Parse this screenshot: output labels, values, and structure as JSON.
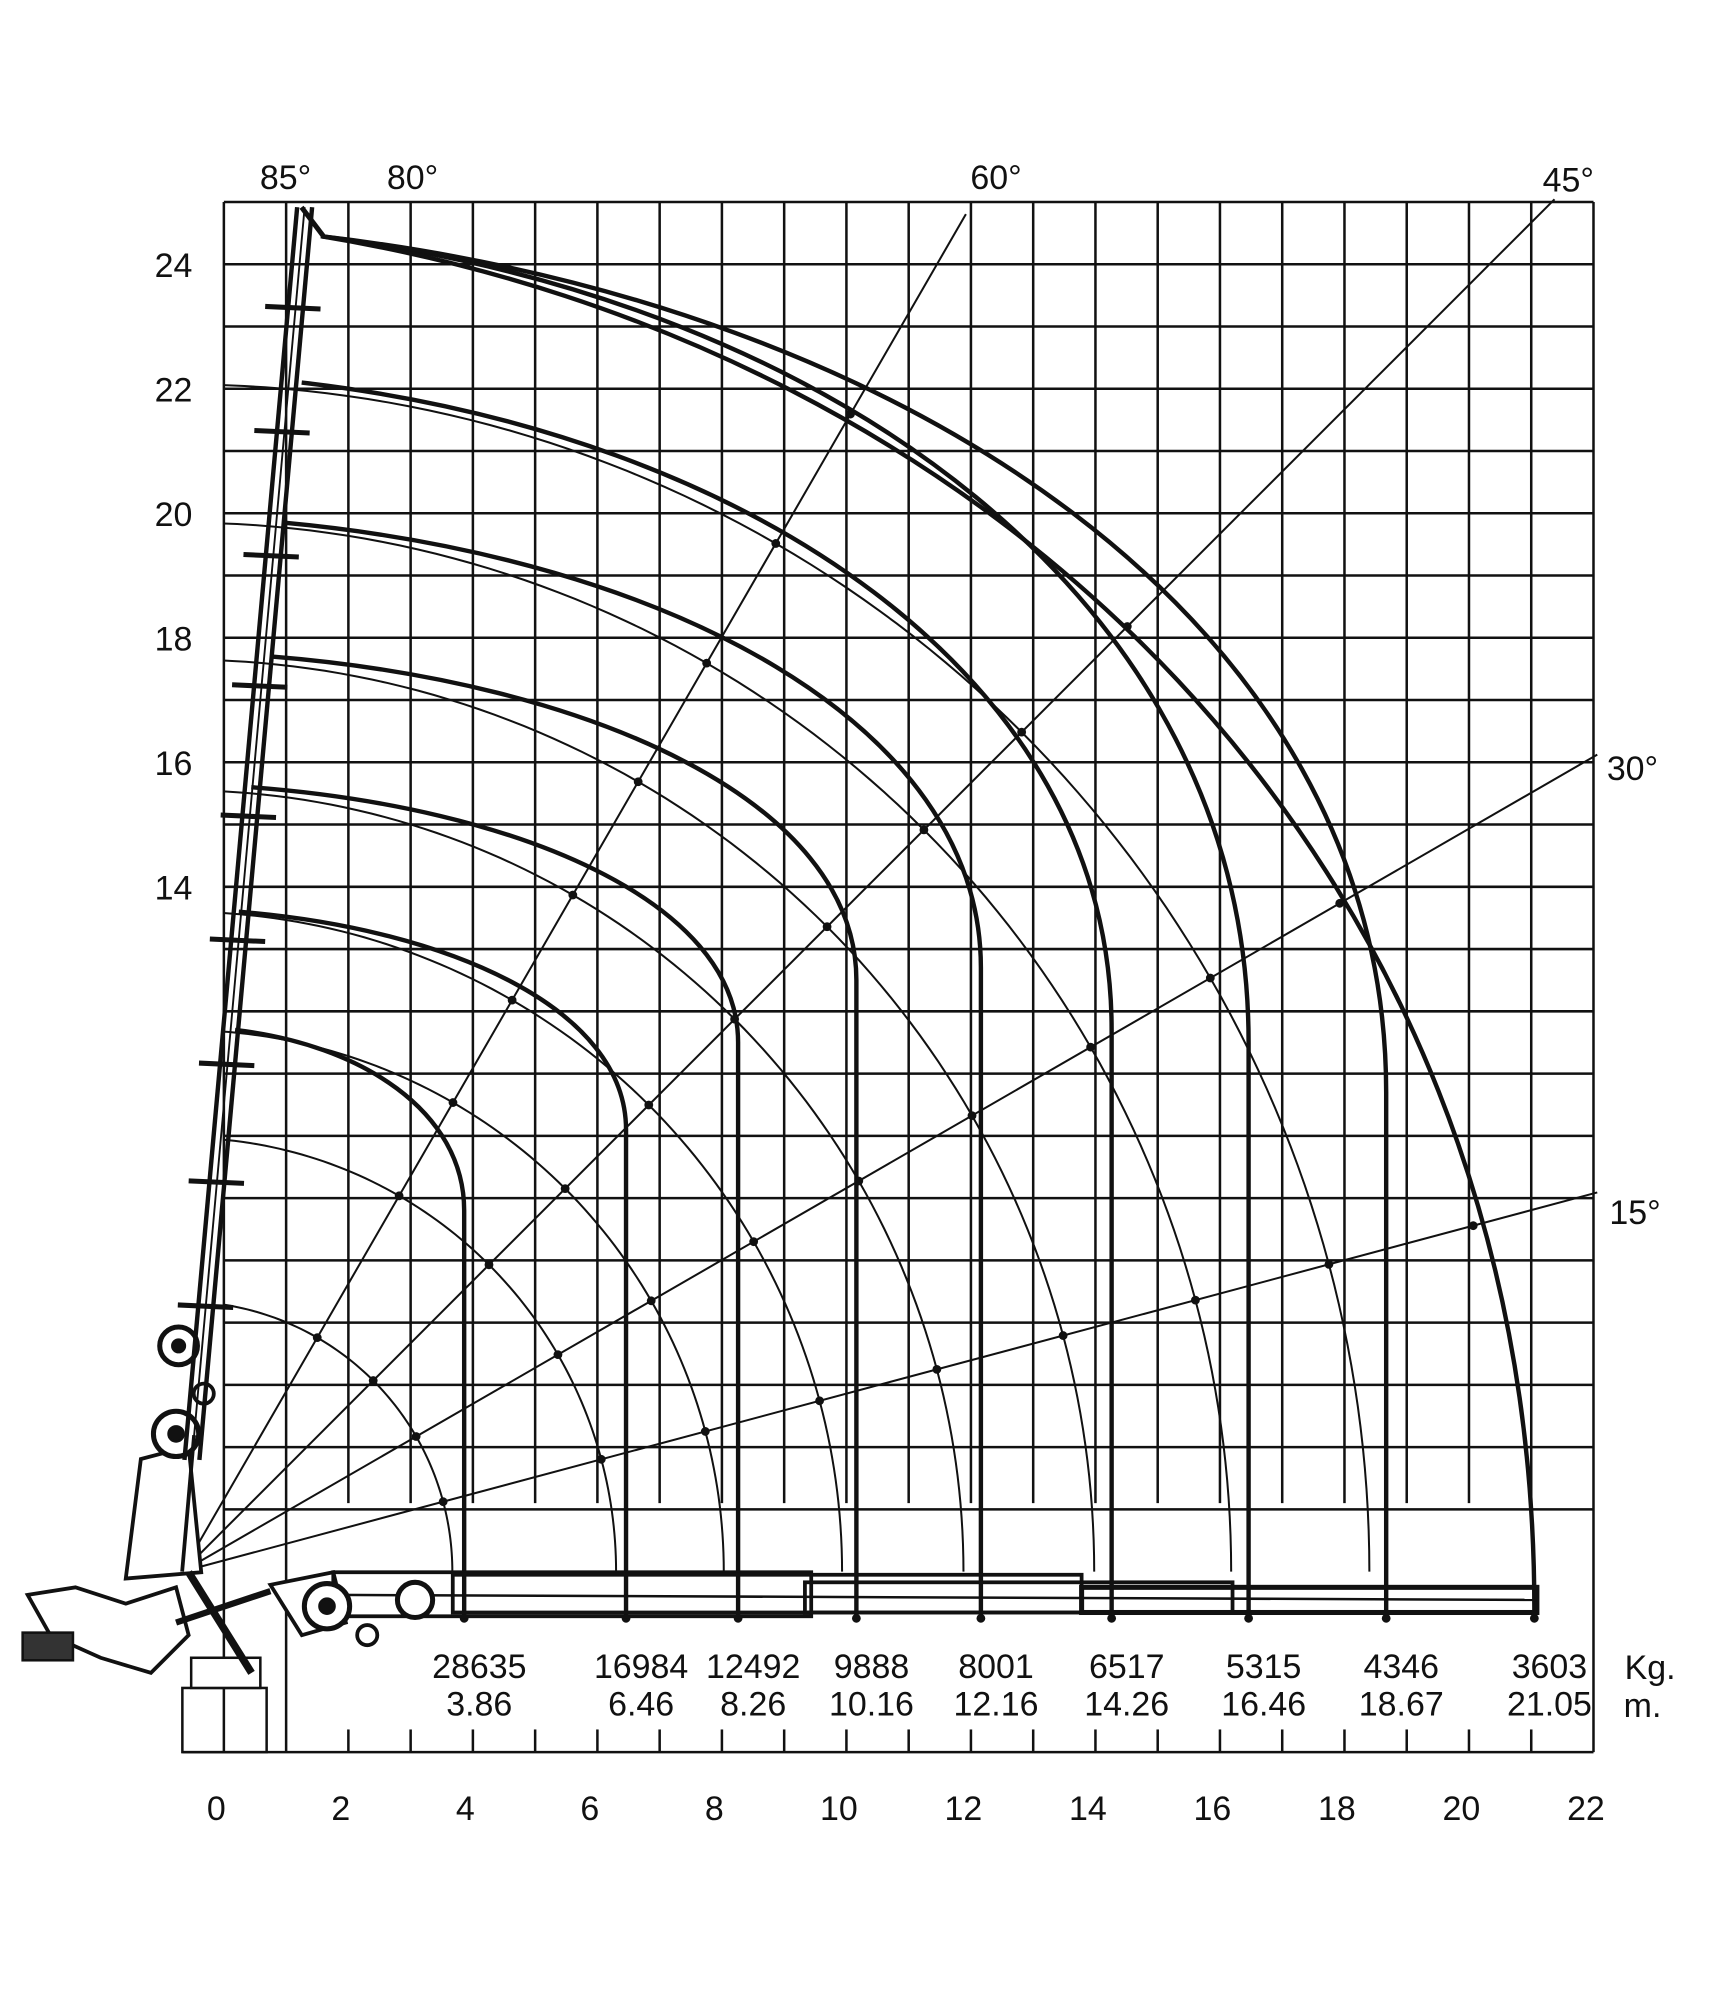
{
  "chart_data": {
    "type": "line",
    "title": "",
    "x_unit_label": "m.",
    "load_unit_label": "Kg.",
    "xlim": [
      0,
      22
    ],
    "ylim": [
      4,
      25
    ],
    "grid": true,
    "x_ticks": [
      "0",
      "2",
      "4",
      "6",
      "8",
      "10",
      "12",
      "14",
      "16",
      "18",
      "20",
      "22"
    ],
    "y_ticks": [
      "24",
      "22",
      "20",
      "18",
      "16",
      "14"
    ],
    "angle_labels": [
      "85°",
      "80°",
      "60°",
      "45°",
      "30°",
      "15°"
    ],
    "radial_angles_deg": [
      15,
      30,
      45,
      60
    ],
    "boom_angle_deg": 85,
    "pivot": {
      "x": -0.67,
      "y": 3.0
    },
    "reach_arcs_m": [
      4.34,
      6.97,
      8.7,
      10.6,
      12.55,
      14.65,
      16.85,
      19.07
    ],
    "loads": [
      {
        "kg": "28635",
        "m": "3.86",
        "reach": 3.86,
        "max_height": 11.7,
        "start_x": 0.18,
        "vertical_from": 8.8
      },
      {
        "kg": "16984",
        "m": "6.46",
        "reach": 6.46,
        "max_height": 13.6,
        "start_x": 0.24,
        "vertical_from": 10.1
      },
      {
        "kg": "12492",
        "m": "8.26",
        "reach": 8.26,
        "max_height": 15.6,
        "start_x": 0.44,
        "vertical_from": 11.5
      },
      {
        "kg": "9888",
        "m": "10.16",
        "reach": 10.16,
        "max_height": 17.7,
        "start_x": 0.75,
        "vertical_from": 12.5
      },
      {
        "kg": "8001",
        "m": "12.16",
        "reach": 12.16,
        "max_height": 19.85,
        "start_x": 0.95,
        "vertical_from": 12.7
      },
      {
        "kg": "6517",
        "m": "14.26",
        "reach": 14.26,
        "max_height": 22.1,
        "start_x": 1.25,
        "vertical_from": 11.7
      },
      {
        "kg": "5315",
        "m": "16.46",
        "reach": 16.46,
        "max_height": 24.45,
        "start_x": 1.56,
        "vertical_from": 11.5
      },
      {
        "kg": "4346",
        "m": "18.67",
        "reach": 18.67,
        "max_height": 24.45,
        "start_x": 1.56,
        "vertical_from": 10.7
      },
      {
        "kg": "3603",
        "m": "21.05",
        "reach": 21.05,
        "max_height": 24.45,
        "start_x": 1.56,
        "vertical_from": 2.4
      }
    ]
  }
}
